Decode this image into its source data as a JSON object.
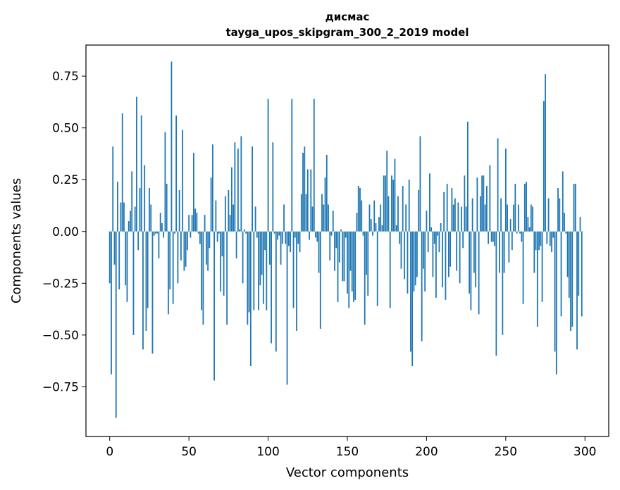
{
  "chart_data": {
    "type": "bar",
    "title": "дисмас",
    "subtitle": "tayga_upos_skipgram_300_2_2019 model",
    "xlabel": "Vector components",
    "ylabel": "Components values",
    "xlim": [
      -15,
      315
    ],
    "ylim": [
      -0.99,
      0.9
    ],
    "xticks": [
      0,
      50,
      100,
      150,
      200,
      250,
      300
    ],
    "xtick_labels": [
      "0",
      "50",
      "100",
      "150",
      "200",
      "250",
      "300"
    ],
    "yticks": [
      -0.75,
      -0.5,
      -0.25,
      0.0,
      0.25,
      0.5,
      0.75
    ],
    "ytick_labels": [
      "−0.75",
      "−0.50",
      "−0.25",
      "0.00",
      "0.25",
      "0.50",
      "0.75"
    ],
    "bar_color": "#1f77b4",
    "grid": false,
    "legend": "none",
    "x": "0..299",
    "values": [
      -0.25,
      -0.69,
      0.41,
      -0.16,
      -0.9,
      0.24,
      -0.28,
      0.14,
      0.57,
      0.14,
      -0.26,
      -0.34,
      0.05,
      0.1,
      0.29,
      -0.5,
      0.12,
      0.65,
      -0.09,
      0.21,
      0.56,
      -0.57,
      0.32,
      -0.48,
      -0.37,
      0.21,
      0.13,
      -0.59,
      -0.02,
      -0.01,
      -0.01,
      -0.13,
      0.09,
      0.04,
      -0.03,
      0.48,
      0.23,
      -0.4,
      -0.28,
      0.82,
      -0.35,
      -0.01,
      0.56,
      -0.25,
      0.2,
      -0.14,
      0.49,
      -0.19,
      -0.17,
      -0.09,
      0.08,
      -0.03,
      0.08,
      0.38,
      0.11,
      0.09,
      -0.01,
      -0.06,
      -0.38,
      -0.45,
      0.08,
      -0.16,
      -0.19,
      -0.08,
      0.26,
      0.42,
      -0.72,
      0.15,
      -0.05,
      -0.01,
      -0.29,
      -0.12,
      -0.31,
      0.17,
      -0.45,
      0.2,
      0.08,
      0.31,
      0.13,
      0.43,
      -0.13,
      0.4,
      0.01,
      0.46,
      -0.25,
      0.01,
      -0.01,
      -0.45,
      -0.39,
      -0.65,
      0.41,
      -0.38,
      0.12,
      -0.03,
      -0.38,
      -0.26,
      -0.21,
      -0.35,
      -0.09,
      -0.38,
      0.64,
      -0.16,
      -0.54,
      0.43,
      -0.01,
      -0.58,
      -0.04,
      -0.02,
      -0.16,
      -0.06,
      0.13,
      -0.06,
      -0.74,
      -0.07,
      -0.1,
      0.64,
      -0.37,
      -0.03,
      -0.48,
      -0.06,
      -0.1,
      0.18,
      0.38,
      0.41,
      0.18,
      0.3,
      -0.04,
      0.3,
      0.12,
      0.64,
      -0.03,
      -0.05,
      -0.2,
      -0.47,
      0.18,
      0.13,
      0.26,
      0.37,
      0.13,
      -0.14,
      -0.02,
      0.1,
      -0.19,
      -0.08,
      -0.34,
      -0.15,
      0.01,
      -0.24,
      -0.24,
      -0.03,
      -0.3,
      -0.37,
      -0.19,
      -0.29,
      -0.34,
      -0.33,
      0.09,
      0.22,
      0.21,
      0.15,
      -0.02,
      -0.45,
      -0.21,
      -0.31,
      0.13,
      0.06,
      -0.02,
      0.15,
      0.04,
      -0.36,
      0.07,
      0.13,
      0.03,
      0.27,
      0.27,
      0.39,
      0.17,
      -0.37,
      0.27,
      0.25,
      0.35,
      0.03,
      0.17,
      -0.06,
      -0.18,
      0.22,
      -0.23,
      0.13,
      -0.3,
      0.25,
      -0.58,
      -0.65,
      -0.29,
      -0.26,
      -0.22,
      0.2,
      0.46,
      -0.53,
      -0.18,
      -0.29,
      0.1,
      -0.1,
      0.28,
      0.02,
      -0.22,
      -0.06,
      -0.32,
      -0.02,
      -0.1,
      0.04,
      -0.27,
      0.19,
      -0.33,
      0.23,
      -0.22,
      -0.17,
      0.21,
      0.13,
      0.16,
      -0.19,
      0.14,
      -0.25,
      0.12,
      -0.08,
      0.27,
      0.12,
      0.53,
      -0.3,
      -0.38,
      0.16,
      -0.2,
      -0.27,
      0.26,
      -0.4,
      0.17,
      0.27,
      0.27,
      0.13,
      0.22,
      -0.06,
      0.32,
      -0.05,
      -0.05,
      -0.07,
      -0.6,
      0.45,
      -0.2,
      0.16,
      -0.5,
      -0.2,
      0.4,
      0.13,
      -0.15,
      0.06,
      -0.09,
      0.13,
      0.23,
      -0.01,
      0.13,
      -0.01,
      -0.05,
      -0.35,
      0.23,
      0.24,
      0.07,
      0.02,
      0.13,
      0.12,
      -0.2,
      -0.09,
      -0.46,
      -0.09,
      -0.07,
      -0.34,
      0.63,
      0.76,
      -0.06,
      0.16,
      -0.07,
      -0.1,
      -0.03,
      -0.58,
      -0.69,
      0.21,
      0.16,
      -0.41,
      0.29,
      0.09,
      -0.01,
      -0.22,
      -0.32,
      -0.48,
      -0.46,
      0.23,
      0.23,
      -0.57,
      -0.31,
      0.07,
      -0.41,
      0.0
    ]
  }
}
